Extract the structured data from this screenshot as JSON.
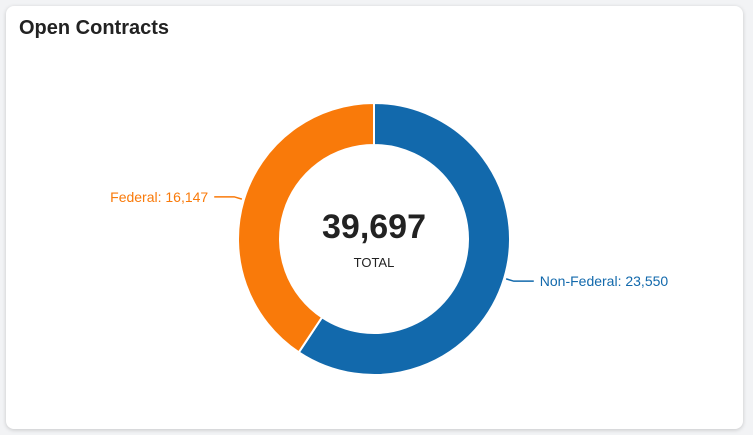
{
  "card": {
    "title": "Open Contracts"
  },
  "chart_data": {
    "type": "pie",
    "donut": true,
    "title": "Open Contracts",
    "center_value": "39,697",
    "center_label": "TOTAL",
    "slices": [
      {
        "name": "Non-Federal",
        "value": 23550,
        "label": "Non-Federal: 23,550",
        "color": "#1269ac"
      },
      {
        "name": "Federal",
        "value": 16147,
        "label": "Federal: 16,147",
        "color": "#f97a0a"
      }
    ],
    "total": 39697,
    "start": "12 o'clock",
    "direction": "clockwise"
  }
}
